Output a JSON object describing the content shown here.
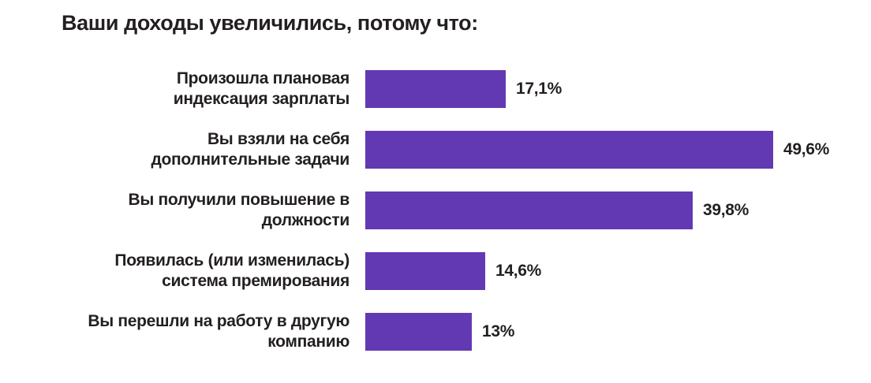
{
  "page": {
    "background_color": "#ffffff",
    "text_color": "#231F20"
  },
  "title": "Ваши доходы увеличились, потому что:",
  "colors": {
    "bar": "#6239B2",
    "text": "#231F20"
  },
  "chart_data": {
    "type": "bar",
    "orientation": "horizontal",
    "title": "Ваши доходы увеличились, потому что:",
    "unit": "%",
    "categories": [
      "Произошла плановая индексация зарплаты",
      "Вы взяли на себя дополнительные задачи",
      "Вы получили повышение в должности",
      "Появилась (или изменилась) система премирования",
      "Вы перешли на работу в другую компанию"
    ],
    "values": [
      17.1,
      49.6,
      39.8,
      14.6,
      13
    ],
    "value_labels": [
      "17,1%",
      "49,6%",
      "39,8%",
      "14,6%",
      "13%"
    ],
    "bar_color": "#6239B2",
    "xlim": [
      0,
      55
    ],
    "grid": false,
    "legend": "none",
    "axis_ticks_visible": false
  },
  "rows": [
    {
      "label_line1": "Произошла плановая",
      "label_line2": "индексация зарплаты",
      "value": 17.1,
      "value_label": "17,1%"
    },
    {
      "label_line1": "Вы взяли на себя",
      "label_line2": "дополнительные задачи",
      "value": 49.6,
      "value_label": "49,6%"
    },
    {
      "label_line1": "Вы получили повышение в",
      "label_line2": "должности",
      "value": 39.8,
      "value_label": "39,8%"
    },
    {
      "label_line1": "Появилась (или изменилась)",
      "label_line2": "система премирования",
      "value": 14.6,
      "value_label": "14,6%"
    },
    {
      "label_line1": "Вы перешли на работу в другую",
      "label_line2": "компанию",
      "value": 13,
      "value_label": "13%"
    }
  ]
}
